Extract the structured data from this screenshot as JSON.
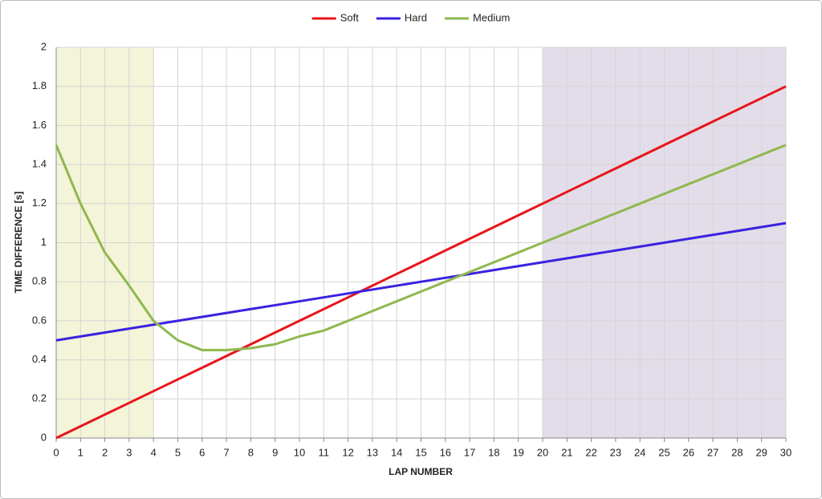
{
  "chart_data": {
    "type": "line",
    "x_label": "LAP NUMBER",
    "y_label": "TIME DIFFERENCE [s]",
    "x": [
      0,
      1,
      2,
      3,
      4,
      5,
      6,
      7,
      8,
      9,
      10,
      11,
      12,
      13,
      14,
      15,
      16,
      17,
      18,
      19,
      20,
      21,
      22,
      23,
      24,
      25,
      26,
      27,
      28,
      29,
      30
    ],
    "series": [
      {
        "name": "Soft",
        "color": "#e8151b",
        "values": [
          0,
          0.06,
          0.12,
          0.18,
          0.24,
          0.3,
          0.36,
          0.42,
          0.48,
          0.54,
          0.6,
          0.66,
          0.72,
          0.78,
          0.84,
          0.9,
          0.96,
          1.02,
          1.08,
          1.14,
          1.2,
          1.26,
          1.32,
          1.38,
          1.44,
          1.5,
          1.56,
          1.62,
          1.68,
          1.74,
          1.8
        ]
      },
      {
        "name": "Hard",
        "color": "#3a22e0",
        "values": [
          0.5,
          0.52,
          0.54,
          0.56,
          0.58,
          0.6,
          0.62,
          0.64,
          0.66,
          0.68,
          0.7,
          0.72,
          0.74,
          0.76,
          0.78,
          0.8,
          0.82,
          0.84,
          0.86,
          0.88,
          0.9,
          0.92,
          0.94,
          0.96,
          0.98,
          1.0,
          1.02,
          1.04,
          1.06,
          1.08,
          1.1
        ]
      },
      {
        "name": "Medium",
        "color": "#8fb84f",
        "values": [
          1.5,
          1.2,
          0.95,
          0.78,
          0.6,
          0.5,
          0.45,
          0.45,
          0.46,
          0.48,
          0.52,
          0.55,
          0.6,
          0.65,
          0.7,
          0.75,
          0.8,
          0.85,
          0.9,
          0.95,
          1.0,
          1.05,
          1.1,
          1.15,
          1.2,
          1.25,
          1.3,
          1.35,
          1.4,
          1.45,
          1.5
        ]
      }
    ],
    "xlim": [
      0,
      30
    ],
    "xticks": [
      0,
      1,
      2,
      3,
      4,
      5,
      6,
      7,
      8,
      9,
      10,
      11,
      12,
      13,
      14,
      15,
      16,
      17,
      18,
      19,
      20,
      21,
      22,
      23,
      24,
      25,
      26,
      27,
      28,
      29,
      30
    ],
    "ylim": [
      0,
      2
    ],
    "yticks": [
      0,
      0.2,
      0.4,
      0.6,
      0.8,
      1,
      1.2,
      1.4,
      1.6,
      1.8,
      2
    ],
    "grid": true,
    "legend": "top",
    "shaded_regions": [
      {
        "xlim": [
          0,
          4
        ],
        "color": "#f4f4d9"
      },
      {
        "xlim": [
          20,
          30
        ],
        "color": "#e3dde9"
      }
    ]
  }
}
